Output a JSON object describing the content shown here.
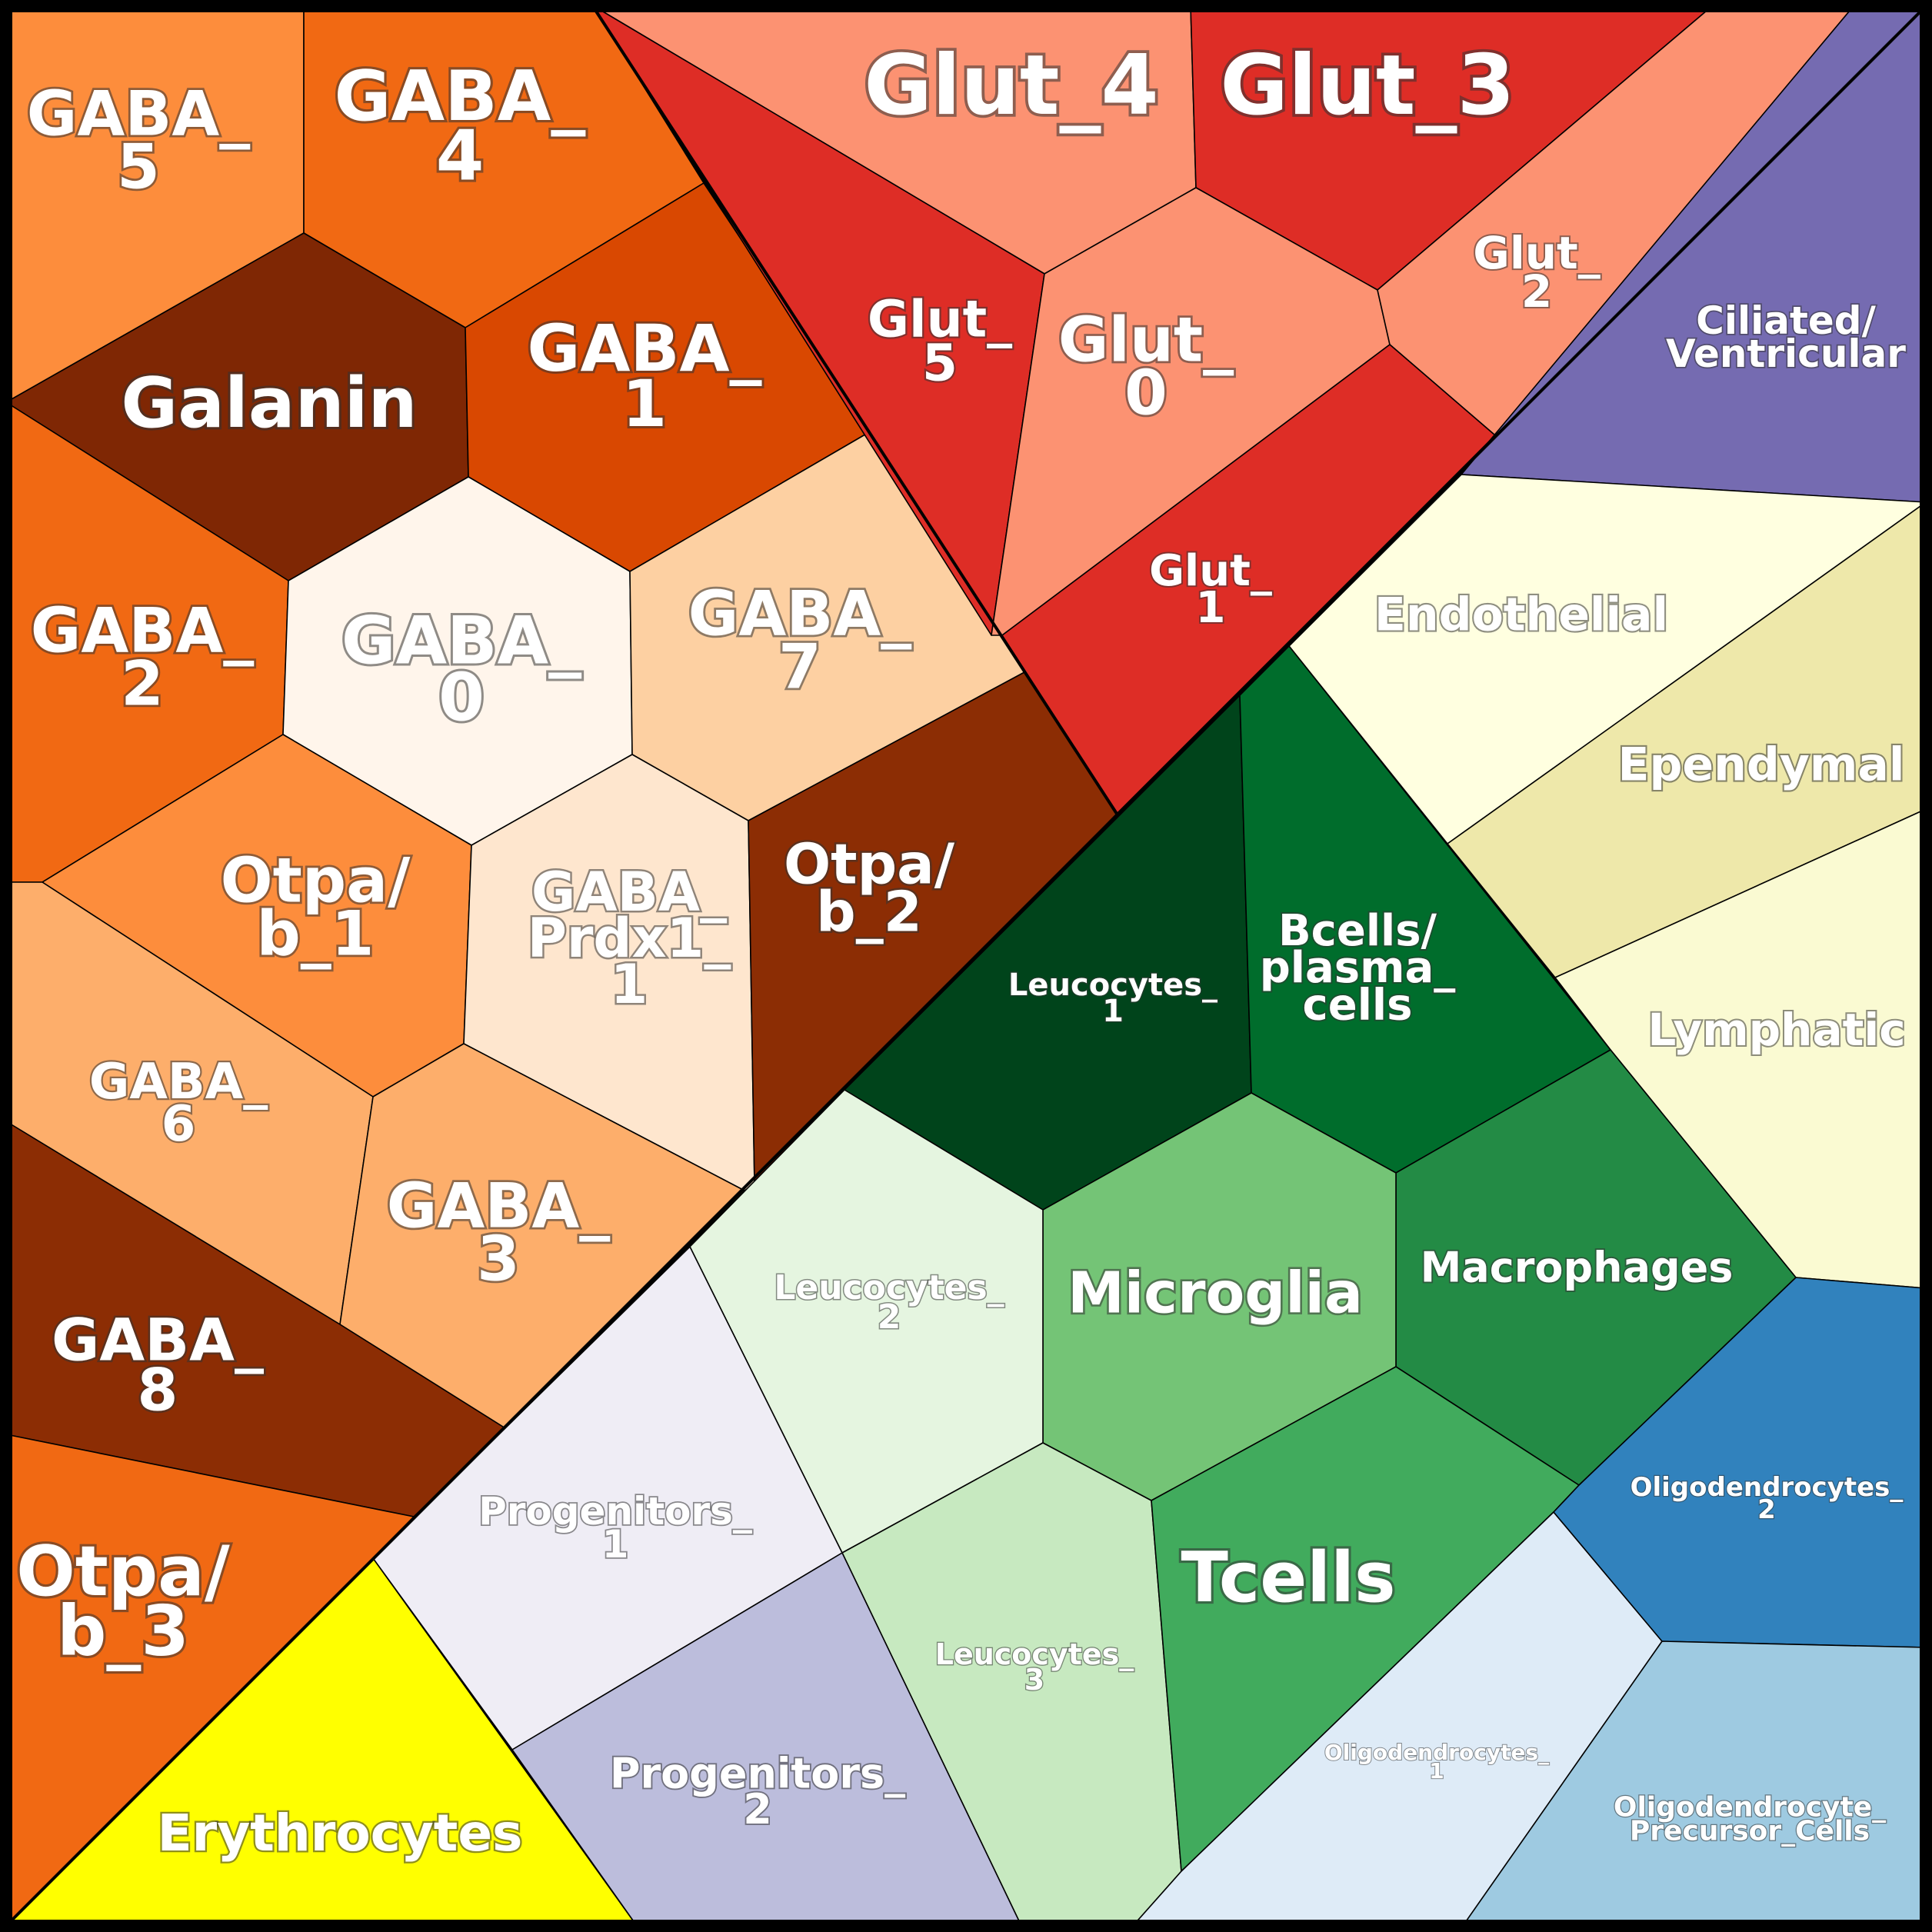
{
  "cells": [
    {
      "id": "gaba5",
      "label": "GABA_\n5",
      "color": "#fd8d3c"
    },
    {
      "id": "gaba4",
      "label": "GABA_\n4",
      "color": "#f16913"
    },
    {
      "id": "galanin",
      "label": "Galanin",
      "color": "#7f2704"
    },
    {
      "id": "gaba1",
      "label": "GABA_\n1",
      "color": "#d94801"
    },
    {
      "id": "gaba2",
      "label": "GABA_\n2",
      "color": "#f16913"
    },
    {
      "id": "gaba0",
      "label": "GABA_\n0",
      "color": "#fff5eb"
    },
    {
      "id": "gaba7",
      "label": "GABA_\n7",
      "color": "#fdd0a2"
    },
    {
      "id": "otpab1",
      "label": "Otpa/\nb_1",
      "color": "#fd8d3c"
    },
    {
      "id": "gabaprdx",
      "label": "GABA_\nPrdx1_\n1",
      "color": "#fee6ce"
    },
    {
      "id": "otpab2",
      "label": "Otpa/\nb_2",
      "color": "#8c2d04"
    },
    {
      "id": "gaba6",
      "label": "GABA_\n6",
      "color": "#fdae6b"
    },
    {
      "id": "gaba3",
      "label": "GABA_\n3",
      "color": "#fdae6b"
    },
    {
      "id": "gaba8",
      "label": "GABA_\n8",
      "color": "#8c2d04"
    },
    {
      "id": "otpab3",
      "label": "Otpa/\nb_3",
      "color": "#f16913"
    },
    {
      "id": "erythro",
      "label": "Erythrocytes",
      "color": "#ffff00"
    },
    {
      "id": "glut4",
      "label": "Glut_4",
      "color": "#fc9272"
    },
    {
      "id": "glut3",
      "label": "Glut_3",
      "color": "#de2d26"
    },
    {
      "id": "glut5",
      "label": "Glut_\n5",
      "color": "#de2d26"
    },
    {
      "id": "glut0",
      "label": "Glut_\n0",
      "color": "#fc9272"
    },
    {
      "id": "glut2",
      "label": "Glut_\n2",
      "color": "#fc9272"
    },
    {
      "id": "glut1",
      "label": "Glut_\n1",
      "color": "#de2d26"
    },
    {
      "id": "ciliated",
      "label": "Ciliated/\nVentricular",
      "color": "#756bb1"
    },
    {
      "id": "endothelial",
      "label": "Endothelial",
      "color": "#ffffe0"
    },
    {
      "id": "ependymal",
      "label": "Ependymal",
      "color": "#eee8aa"
    },
    {
      "id": "lymphatic",
      "label": "Lymphatic",
      "color": "#fafad2"
    },
    {
      "id": "leuco1",
      "label": "Leucocytes_\n1",
      "color": "#00441b"
    },
    {
      "id": "bcells",
      "label": "Bcells/\nplasma_\ncells",
      "color": "#006d2c"
    },
    {
      "id": "macro",
      "label": "Macrophages",
      "color": "#238b45"
    },
    {
      "id": "microglia",
      "label": "Microglia",
      "color": "#74c476"
    },
    {
      "id": "leuco2",
      "label": "Leucocytes_\n2",
      "color": "#e5f5e0"
    },
    {
      "id": "leuco3",
      "label": "Leucocytes_\n3",
      "color": "#c7e9c0"
    },
    {
      "id": "tcells",
      "label": "Tcells",
      "color": "#41ab5d"
    },
    {
      "id": "prog1",
      "label": "Progenitors_\n1",
      "color": "#efedf5"
    },
    {
      "id": "prog2",
      "label": "Progenitors_\n2",
      "color": "#bcbddc"
    },
    {
      "id": "oligo1",
      "label": "Oligodendrocytes_\n1",
      "color": "#deebf7"
    },
    {
      "id": "oligo2",
      "label": "Oligodendrocytes_\n2",
      "color": "#3182bd"
    },
    {
      "id": "opc",
      "label": "Oligodendrocyte_\nPrecursor_Cells",
      "color": "#9ecae1"
    }
  ]
}
